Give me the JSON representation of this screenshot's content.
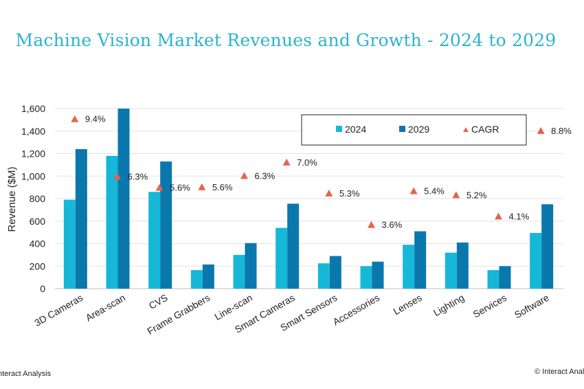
{
  "page": {
    "title": "Machine Vision Market Revenues and Growth - 2024 to 2029",
    "footer_left": "Interact Analysis",
    "footer_right": "© Interact Analysis"
  },
  "chart_data": {
    "type": "bar",
    "title": "Machine Vision Market Revenues and Growth - 2024 to 2029",
    "xlabel": "",
    "ylabel": "Revenue ($M)",
    "ylim": [
      0,
      1600
    ],
    "yticks": [
      0,
      200,
      400,
      600,
      800,
      1000,
      1200,
      1400,
      1600
    ],
    "ytick_labels": [
      "0",
      "200",
      "400",
      "600",
      "800",
      "1,000",
      "1,200",
      "1,400",
      "1,600"
    ],
    "grid": true,
    "legend_position": "top-right",
    "categories": [
      "3D Cameras",
      "Area-scan",
      "CVS",
      "Frame Grabbers",
      "Line-scan",
      "Smart Cameras",
      "Smart Sensors",
      "Accessories",
      "Lenses",
      "Lighting",
      "Services",
      "Software"
    ],
    "series": [
      {
        "name": "2024",
        "color": "#17b7d8",
        "values": [
          790,
          1180,
          860,
          165,
          300,
          540,
          225,
          200,
          390,
          320,
          165,
          495
        ]
      },
      {
        "name": "2029",
        "color": "#0a78ad",
        "values": [
          1240,
          1600,
          1130,
          215,
          405,
          755,
          290,
          240,
          510,
          410,
          200,
          750
        ]
      }
    ],
    "cagr": {
      "name": "CAGR",
      "color": "#e8634c",
      "marker": "triangle",
      "labels": [
        "9.4%",
        "6.3%",
        "5.6%",
        "5.6%",
        "6.3%",
        "7.0%",
        "5.3%",
        "3.6%",
        "5.4%",
        "5.2%",
        "4.1%",
        "8.8%"
      ],
      "marker_y_values": [
        1510,
        1000,
        900,
        905,
        1005,
        1125,
        850,
        570,
        870,
        835,
        645,
        1405
      ]
    }
  }
}
